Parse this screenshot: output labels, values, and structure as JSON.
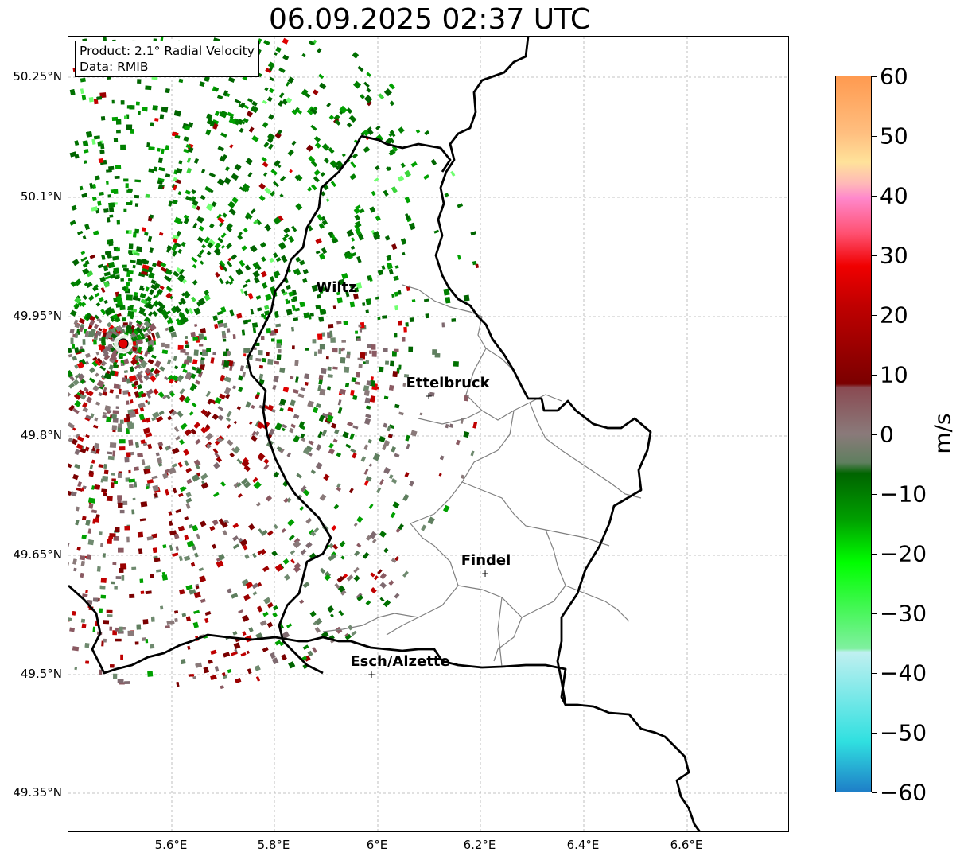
{
  "title": "06.09.2025 02:37 UTC",
  "info_box": {
    "line1": "Product: 2.1° Radial Velocity",
    "line2": "Data: RMIB"
  },
  "axes": {
    "lat_labels": [
      "50.25°N",
      "50.1°N",
      "49.95°N",
      "49.8°N",
      "49.65°N",
      "49.5°N",
      "49.35°N"
    ],
    "lon_labels": [
      "5.6°E",
      "5.8°E",
      "6°E",
      "6.2°E",
      "6.4°E",
      "6.6°E"
    ]
  },
  "cities": [
    {
      "name": "Wiltz",
      "marker": false
    },
    {
      "name": "Ettelbruck",
      "marker": true
    },
    {
      "name": "Findel",
      "marker": true
    },
    {
      "name": "Esch/Alzette",
      "marker": true
    }
  ],
  "radar_site": {
    "color": "#e00000"
  },
  "colorbar": {
    "unit": "m/s",
    "ticks": [
      "60",
      "50",
      "40",
      "30",
      "20",
      "10",
      "0",
      "−10",
      "−20",
      "−30",
      "−40",
      "−50",
      "−60"
    ],
    "range": [
      -60,
      60
    ]
  }
}
